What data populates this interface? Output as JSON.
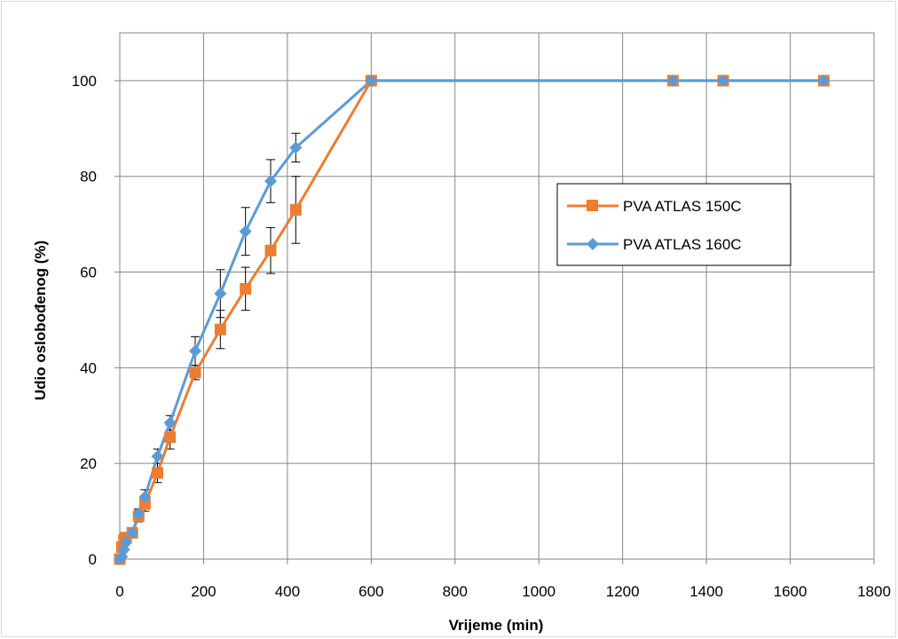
{
  "chart_data": {
    "type": "line",
    "title": "",
    "xlabel": "Vrijeme (min)",
    "ylabel": "Udio oslobođenog (%)",
    "xlim": [
      0,
      1800
    ],
    "ylim": [
      0,
      110
    ],
    "x_ticks": [
      0,
      200,
      400,
      600,
      800,
      1000,
      1200,
      1400,
      1600,
      1800
    ],
    "y_ticks": [
      0,
      20,
      40,
      60,
      80,
      100
    ],
    "grid": true,
    "legend_position": "right",
    "series": [
      {
        "name": "PVA ATLAS 150C",
        "color": "#ED7D31",
        "marker": "square",
        "x": [
          0,
          5,
          10,
          15,
          30,
          45,
          60,
          90,
          120,
          180,
          240,
          300,
          360,
          420,
          600,
          1320,
          1440,
          1680
        ],
        "y": [
          0,
          2.5,
          4,
          4.5,
          5.5,
          9,
          11.5,
          18,
          25.5,
          39,
          48,
          56.5,
          64.5,
          73,
          100,
          100,
          100,
          100
        ],
        "error": [
          0,
          0,
          0,
          0,
          0.8,
          1.2,
          1.5,
          2,
          2.5,
          1.5,
          4,
          4.5,
          4.8,
          7,
          0,
          0,
          0,
          0
        ]
      },
      {
        "name": "PVA ATLAS 160C",
        "color": "#5B9BD5",
        "marker": "diamond",
        "x": [
          0,
          5,
          10,
          15,
          30,
          45,
          60,
          90,
          120,
          180,
          240,
          300,
          360,
          420,
          600,
          1320,
          1440,
          1680
        ],
        "y": [
          0,
          0.5,
          2,
          3.5,
          5.5,
          9.5,
          13,
          21.5,
          28.5,
          43.5,
          55.5,
          68.5,
          79,
          86,
          100,
          100,
          100,
          100
        ],
        "error": [
          0,
          0,
          0,
          0,
          0.6,
          1,
          1.5,
          1.5,
          1.5,
          3,
          5,
          5,
          4.5,
          3,
          0,
          0,
          0,
          0
        ]
      }
    ]
  }
}
